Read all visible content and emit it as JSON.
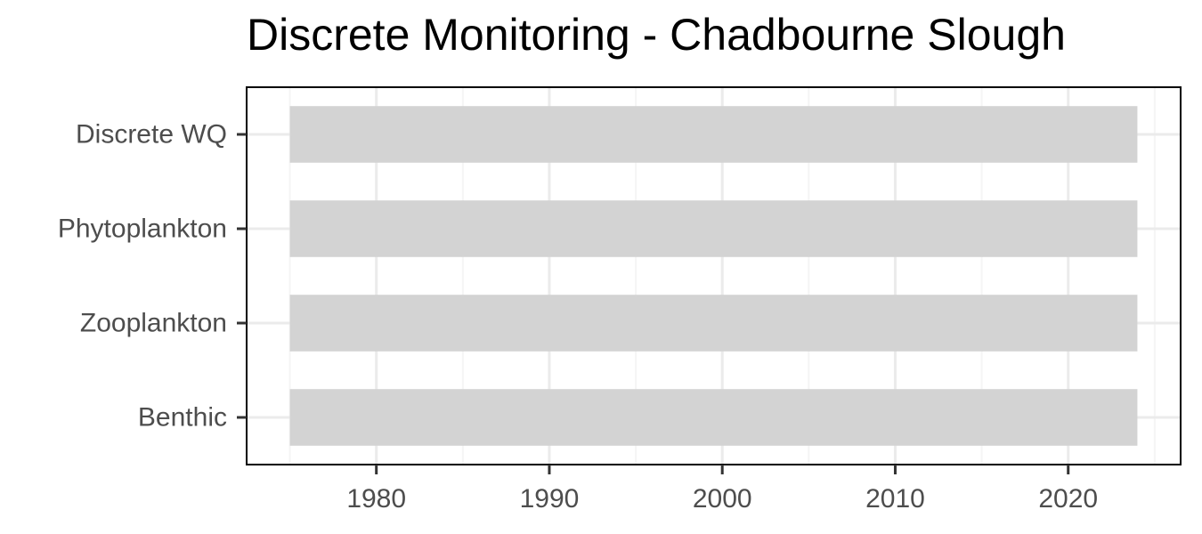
{
  "chart_data": {
    "type": "bar",
    "orientation": "horizontal",
    "title": "Discrete Monitoring - Chadbourne Slough",
    "xlabel": "",
    "ylabel": "",
    "categories": [
      "Discrete WQ",
      "Phytoplankton",
      "Zooplankton",
      "Benthic"
    ],
    "ranges": [
      {
        "category": "Discrete WQ",
        "start": 1975,
        "end": 2024
      },
      {
        "category": "Phytoplankton",
        "start": 1975,
        "end": 2024
      },
      {
        "category": "Zooplankton",
        "start": 1975,
        "end": 2024
      },
      {
        "category": "Benthic",
        "start": 1975,
        "end": 2024
      }
    ],
    "xlim": [
      1972.5,
      2026.5
    ],
    "xticks": [
      1980,
      1990,
      2000,
      2010,
      2020
    ],
    "xtick_labels": [
      "1980",
      "1990",
      "2000",
      "2010",
      "2020"
    ],
    "grid": true,
    "legend": "none",
    "colors": {
      "bar": "#d3d3d3",
      "grid_major": "#ebebeb",
      "grid_minor": "#f5f5f5",
      "panel_border": "#000000",
      "tick_text": "#4d4d4d"
    }
  }
}
